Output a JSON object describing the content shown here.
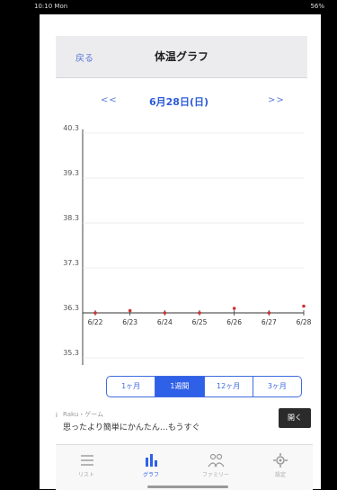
{
  "status": {
    "left": "10:10 Mon",
    "right": "56%"
  },
  "nav": {
    "back_label": "戻る",
    "title": "体温グラフ"
  },
  "date_nav": {
    "prev_label": "<<",
    "current": "6月28日(日)",
    "next_label": ">>"
  },
  "chart_data": {
    "type": "line",
    "y_ticks": [
      "40.3",
      "39.3",
      "38.3",
      "37.3",
      "36.3",
      "35.3"
    ],
    "x_ticks": [
      "6/22",
      "6/23",
      "6/24",
      "6/25",
      "6/26",
      "6/27",
      "6/28"
    ],
    "ylim": [
      35.3,
      40.3
    ],
    "series": [
      {
        "color": "#d03030",
        "x": [
          "6/22",
          "6/23",
          "6/24",
          "6/25",
          "6/26",
          "6/27",
          "6/28"
        ],
        "values": [
          36.3,
          36.35,
          36.3,
          36.3,
          36.4,
          36.3,
          36.45
        ]
      }
    ],
    "grid": true
  },
  "range_segments": [
    {
      "label": "1ヶ月",
      "active": false
    },
    {
      "label": "1週間",
      "active": true
    },
    {
      "label": "12ヶ月",
      "active": false
    },
    {
      "label": "3ヶ月",
      "active": false
    }
  ],
  "ad": {
    "info": "i",
    "sub": "Raku・ゲーム",
    "text": "思ったより簡単にかんたん…もうすぐ",
    "button": "開く"
  },
  "tabs": [
    {
      "name": "list",
      "label": "リスト",
      "active": false
    },
    {
      "name": "graph",
      "label": "グラフ",
      "active": true
    },
    {
      "name": "family",
      "label": "ファミリー",
      "active": false
    },
    {
      "name": "settings",
      "label": "設定",
      "active": false
    }
  ]
}
